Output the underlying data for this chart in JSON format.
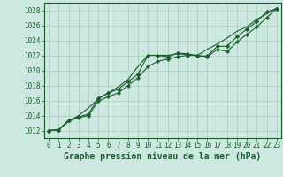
{
  "bg_color": "#cce8e0",
  "grid_color": "#aaccbb",
  "line_color": "#1a5c2a",
  "marker_color": "#1a5c2a",
  "xlabel": "Graphe pression niveau de la mer (hPa)",
  "xlabel_fontsize": 7.0,
  "xlim": [
    -0.5,
    23.5
  ],
  "ylim": [
    1011.0,
    1029.0
  ],
  "yticks": [
    1012,
    1014,
    1016,
    1018,
    1020,
    1022,
    1024,
    1026,
    1028
  ],
  "xticks": [
    0,
    1,
    2,
    3,
    4,
    5,
    6,
    7,
    8,
    9,
    10,
    11,
    12,
    13,
    14,
    15,
    16,
    17,
    18,
    19,
    20,
    21,
    22,
    23
  ],
  "series1_x": [
    0,
    1,
    2,
    3,
    4,
    5,
    6,
    7,
    8,
    9,
    10,
    11,
    12,
    13,
    14,
    15,
    16,
    17,
    18,
    19,
    20,
    21,
    22,
    23
  ],
  "series1_y": [
    1012.0,
    1012.1,
    1013.4,
    1013.8,
    1014.2,
    1016.3,
    1017.0,
    1017.5,
    1018.5,
    1019.5,
    1022.0,
    1022.0,
    1021.8,
    1022.3,
    1022.2,
    1021.9,
    1021.9,
    1023.2,
    1023.2,
    1024.5,
    1025.5,
    1026.5,
    1027.8,
    1028.2
  ],
  "series2_x": [
    0,
    1,
    2,
    3,
    4,
    5,
    6,
    7,
    8,
    9,
    10,
    11,
    12,
    13,
    14,
    15,
    16,
    17,
    18,
    19,
    20,
    21,
    22,
    23
  ],
  "series2_y": [
    1012.0,
    1012.1,
    1013.3,
    1013.7,
    1014.0,
    1015.9,
    1016.5,
    1017.0,
    1018.0,
    1019.0,
    1020.5,
    1021.2,
    1021.5,
    1021.8,
    1022.0,
    1022.0,
    1021.8,
    1022.8,
    1022.5,
    1023.8,
    1024.8,
    1025.8,
    1027.0,
    1028.2
  ],
  "series3_x": [
    0,
    1,
    2,
    3,
    4,
    5,
    6,
    7,
    8,
    9,
    10,
    11,
    12,
    13,
    14,
    15,
    16,
    17,
    18,
    19,
    20,
    21,
    22,
    23
  ],
  "series3_y": [
    1012.0,
    1012.1,
    1013.2,
    1014.0,
    1015.0,
    1016.2,
    1017.0,
    1017.8,
    1018.8,
    1020.5,
    1022.0,
    1022.0,
    1022.0,
    1022.2,
    1022.1,
    1022.0,
    1022.8,
    1023.5,
    1024.3,
    1025.2,
    1025.8,
    1026.8,
    1027.5,
    1028.3
  ]
}
